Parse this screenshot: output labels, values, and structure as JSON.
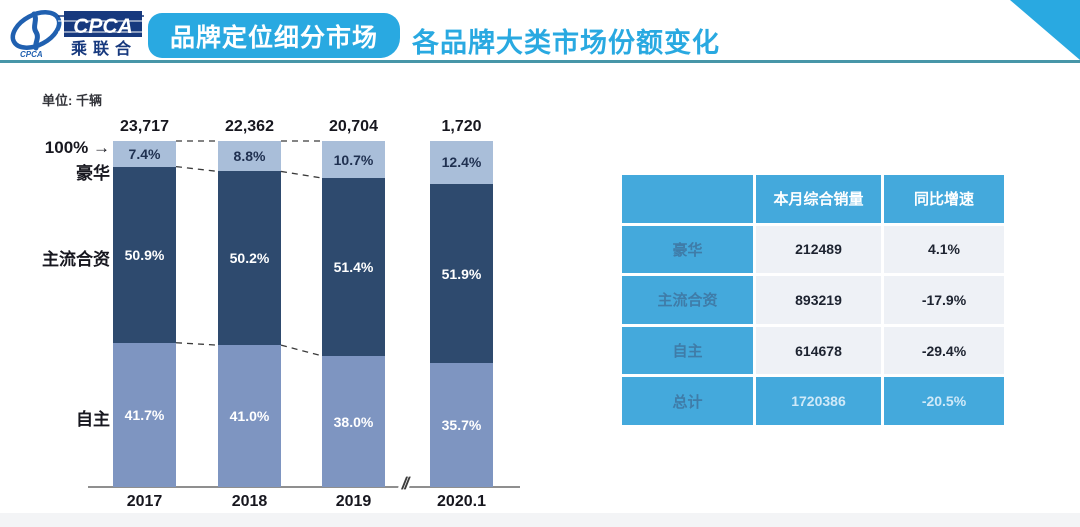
{
  "header": {
    "logo": {
      "acronym": "CPCA",
      "cn_name": "乘联合",
      "emblem_caption": "CPCA"
    },
    "badge_label": "品牌定位细分市场",
    "title": "各品牌大类市场份额变化"
  },
  "unit_label": "单位: 千辆",
  "chart_data": {
    "type": "bar",
    "stacked": true,
    "percent_normalized": true,
    "categories": [
      "2017",
      "2018",
      "2019",
      "2020.1"
    ],
    "totals": [
      "23,717",
      "22,362",
      "20,704",
      "1,720"
    ],
    "series": [
      {
        "name": "豪华",
        "values": [
          7.4,
          8.8,
          10.7,
          12.4
        ],
        "color": "#A9BED9",
        "label_color": "#1f3050"
      },
      {
        "name": "主流合资",
        "values": [
          50.9,
          50.2,
          51.4,
          51.9
        ],
        "color": "#2E4A6E",
        "label_color": "#ffffff"
      },
      {
        "name": "自主",
        "values": [
          41.7,
          41.0,
          38.0,
          35.7
        ],
        "color": "#7E95C1",
        "label_color": "#ffffff"
      }
    ],
    "value_suffix": "%",
    "top_axis_label": "100%",
    "top_axis_arrow": "→",
    "axis_break": "//",
    "title": "各品牌大类市场份额变化",
    "unit": "千辆",
    "legend_position": "left",
    "grid": false
  },
  "table": {
    "headers": [
      "",
      "本月综合销量",
      "同比增速"
    ],
    "rows": [
      {
        "label": "豪华",
        "sales": "212489",
        "yoy": "4.1%"
      },
      {
        "label": "主流合资",
        "sales": "893219",
        "yoy": "-17.9%"
      },
      {
        "label": "自主",
        "sales": "614678",
        "yoy": "-29.4%"
      },
      {
        "label": "总计",
        "sales": "1720386",
        "yoy": "-20.5%"
      }
    ]
  },
  "colors": {
    "accent_blue": "#29A9E1",
    "head_rule": "#4796A8",
    "table_blue": "#44A9DC",
    "table_cell_bg": "#EEF1F6",
    "axis_line": "#8f8f8f",
    "dashed_connector": "#3a3a3a"
  }
}
